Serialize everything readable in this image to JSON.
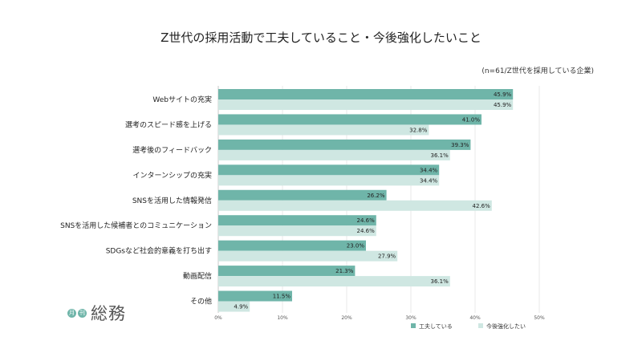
{
  "chart_data": {
    "type": "bar",
    "orientation": "horizontal",
    "title": "Z世代の採用活動で工夫していること・今後強化したいこと",
    "note": "(n=61/Z世代を採用している企業)",
    "categories": [
      "Webサイトの充実",
      "選考のスピード感を上げる",
      "選考後のフィードバック",
      "インターンシップの充実",
      "SNSを活用した情報発信",
      "SNSを活用した候補者とのコミュニケーション",
      "SDGsなど社会的意義を打ち出す",
      "動画配信",
      "その他"
    ],
    "series": [
      {
        "name": "工夫している",
        "color": "#6fb5a9",
        "values": [
          45.9,
          41.0,
          39.3,
          34.4,
          26.2,
          24.6,
          23.0,
          21.3,
          11.5
        ]
      },
      {
        "name": "今後強化したい",
        "color": "#cfe7e2",
        "values": [
          45.9,
          32.8,
          36.1,
          34.4,
          42.6,
          24.6,
          27.9,
          36.1,
          4.9
        ]
      }
    ],
    "xlim": [
      0,
      50
    ],
    "xticks": [
      "0%",
      "10%",
      "20%",
      "30%",
      "40%",
      "50%"
    ],
    "grid": true,
    "legend": "bottom-right"
  },
  "logo": {
    "dot1": "月",
    "dot2": "刊",
    "text": "総務"
  }
}
